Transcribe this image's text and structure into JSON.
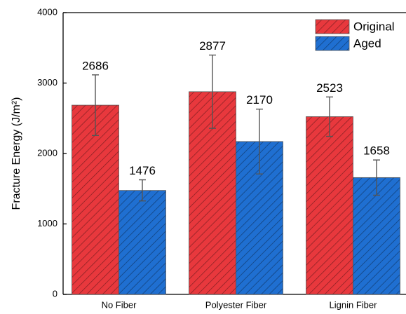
{
  "chart_data": {
    "type": "bar",
    "y_label": "Fracture Energy (J/m²)",
    "categories": [
      "No Fiber",
      "Polyester Fiber",
      "Lignin Fiber"
    ],
    "series": [
      {
        "name": "Original",
        "color": "#e8383d",
        "values": [
          2686,
          2877,
          2523
        ],
        "errors": [
          430,
          520,
          280
        ]
      },
      {
        "name": "Aged",
        "color": "#1f6fd1",
        "values": [
          1476,
          2170,
          1658
        ],
        "errors": [
          150,
          460,
          250
        ]
      }
    ],
    "ylim": [
      0,
      4000
    ],
    "yticks": [
      0,
      1000,
      2000,
      3000,
      4000
    ],
    "legend": "top-right",
    "hatch": true
  }
}
